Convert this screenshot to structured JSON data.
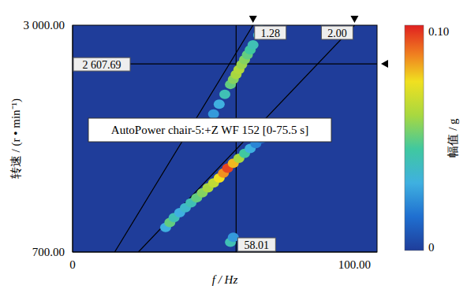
{
  "chart_data": {
    "type": "heatmap",
    "x_label": "f / Hz",
    "y_label": "转速 / (r • min⁻¹)",
    "xlim": [
      0,
      108
    ],
    "xticks": [
      0,
      {
        "value": 100,
        "label": "100.00"
      }
    ],
    "ylim": [
      700,
      3000
    ],
    "yticks": [
      {
        "value": 700,
        "label": "700.00"
      },
      {
        "value": 3000,
        "label": "3 000.00"
      }
    ],
    "grid": false,
    "annotation": "AutoPower chair-5:+Z WF 152 [0-75.5 s]",
    "order_lines": [
      {
        "order": 1.28,
        "label": "1.28"
      },
      {
        "order": 2.0,
        "label": "2.00"
      }
    ],
    "cursors": {
      "x": {
        "value": 58.01,
        "label": "58.01"
      },
      "y": {
        "value": 2607.69,
        "label": "2 607.69"
      }
    },
    "colorbar": {
      "label": "幅值 / g",
      "range": [
        0,
        0.1
      ],
      "ticks": [
        0,
        {
          "value": 0.1,
          "label": "0.10"
        }
      ]
    },
    "cells": [
      {
        "x": 56,
        "y": 800,
        "value": 0.04
      },
      {
        "x": 57,
        "y": 850,
        "value": 0.025
      },
      {
        "x": 33,
        "y": 950,
        "value": 0.03
      },
      {
        "x": 34.5,
        "y": 1000,
        "value": 0.05
      },
      {
        "x": 36,
        "y": 1050,
        "value": 0.04
      },
      {
        "x": 38,
        "y": 1100,
        "value": 0.03
      },
      {
        "x": 40,
        "y": 1150,
        "value": 0.035
      },
      {
        "x": 42,
        "y": 1200,
        "value": 0.04
      },
      {
        "x": 44,
        "y": 1250,
        "value": 0.05
      },
      {
        "x": 46,
        "y": 1300,
        "value": 0.055
      },
      {
        "x": 48,
        "y": 1350,
        "value": 0.06
      },
      {
        "x": 50,
        "y": 1400,
        "value": 0.065
      },
      {
        "x": 52,
        "y": 1450,
        "value": 0.075
      },
      {
        "x": 53.5,
        "y": 1500,
        "value": 0.085
      },
      {
        "x": 55,
        "y": 1550,
        "value": 0.095
      },
      {
        "x": 57,
        "y": 1600,
        "value": 0.08
      },
      {
        "x": 59,
        "y": 1650,
        "value": 0.06
      },
      {
        "x": 61,
        "y": 1700,
        "value": 0.045
      },
      {
        "x": 63,
        "y": 1750,
        "value": 0.03
      },
      {
        "x": 65,
        "y": 1800,
        "value": 0.02
      },
      {
        "x": 67,
        "y": 1850,
        "value": 0.015
      },
      {
        "x": 45,
        "y": 1900,
        "value": 0.015
      },
      {
        "x": 47.5,
        "y": 2000,
        "value": 0.02
      },
      {
        "x": 50,
        "y": 2100,
        "value": 0.025
      },
      {
        "x": 52,
        "y": 2200,
        "value": 0.03
      },
      {
        "x": 54,
        "y": 2300,
        "value": 0.04
      },
      {
        "x": 56,
        "y": 2400,
        "value": 0.05
      },
      {
        "x": 57,
        "y": 2450,
        "value": 0.055
      },
      {
        "x": 58,
        "y": 2500,
        "value": 0.06
      },
      {
        "x": 59,
        "y": 2550,
        "value": 0.062
      },
      {
        "x": 60,
        "y": 2600,
        "value": 0.058
      },
      {
        "x": 61,
        "y": 2650,
        "value": 0.055
      },
      {
        "x": 62,
        "y": 2700,
        "value": 0.05
      },
      {
        "x": 63,
        "y": 2750,
        "value": 0.045
      },
      {
        "x": 64,
        "y": 2800,
        "value": 0.04
      },
      {
        "x": 66,
        "y": 2900,
        "value": 0.035
      },
      {
        "x": 67,
        "y": 2950,
        "value": 0.035
      }
    ]
  }
}
